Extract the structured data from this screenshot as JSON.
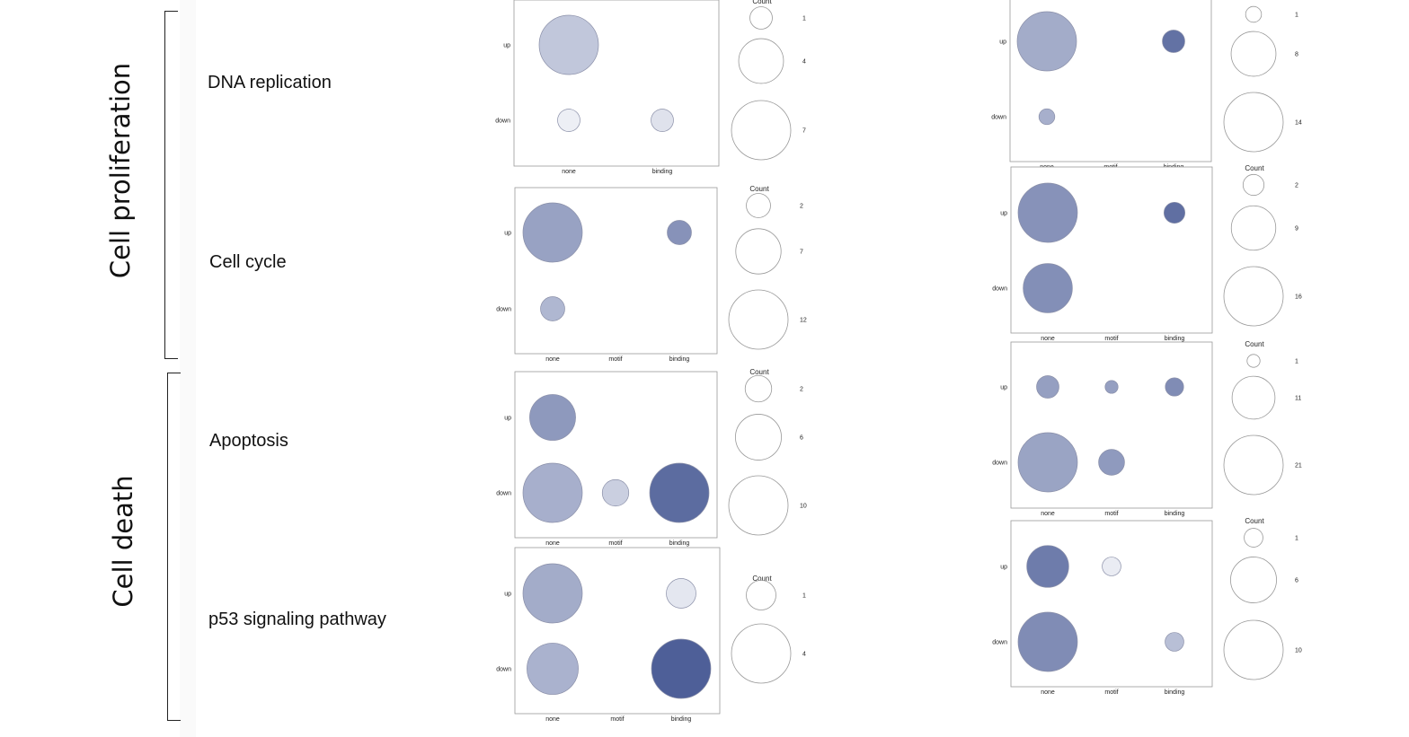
{
  "groups": [
    {
      "label": "Cell proliferation",
      "pathways": [
        "DNA replication",
        "Cell cycle"
      ]
    },
    {
      "label": "Cell death",
      "pathways": [
        "Apoptosis",
        "p53 signaling pathway"
      ]
    }
  ],
  "legend_title": "Count",
  "bubble_color": "#4e5f98",
  "chart_data": [
    {
      "type": "scatter",
      "pathway": "DNA replication",
      "column": "left",
      "x_categories": [
        "none",
        "binding"
      ],
      "y_categories": [
        "up",
        "down"
      ],
      "points": [
        {
          "x": "none",
          "y": "up",
          "count": 7,
          "intensity": 0.35
        },
        {
          "x": "none",
          "y": "down",
          "count": 1,
          "intensity": 0.1
        },
        {
          "x": "binding",
          "y": "down",
          "count": 1,
          "intensity": 0.18
        }
      ],
      "legend": [
        1,
        4,
        7
      ],
      "legend_max": 7
    },
    {
      "type": "scatter",
      "pathway": "Cell cycle",
      "column": "left",
      "x_categories": [
        "none",
        "motif",
        "binding"
      ],
      "y_categories": [
        "up",
        "down"
      ],
      "points": [
        {
          "x": "none",
          "y": "up",
          "count": 12,
          "intensity": 0.58
        },
        {
          "x": "binding",
          "y": "up",
          "count": 2,
          "intensity": 0.68
        },
        {
          "x": "none",
          "y": "down",
          "count": 2,
          "intensity": 0.45
        }
      ],
      "legend": [
        2,
        7,
        12
      ],
      "legend_max": 12
    },
    {
      "type": "scatter",
      "pathway": "Apoptosis",
      "column": "left",
      "x_categories": [
        "none",
        "motif",
        "binding"
      ],
      "y_categories": [
        "up",
        "down"
      ],
      "points": [
        {
          "x": "none",
          "y": "up",
          "count": 6,
          "intensity": 0.64
        },
        {
          "x": "none",
          "y": "down",
          "count": 10,
          "intensity": 0.5
        },
        {
          "x": "motif",
          "y": "down",
          "count": 2,
          "intensity": 0.3
        },
        {
          "x": "binding",
          "y": "down",
          "count": 10,
          "intensity": 0.92
        }
      ],
      "legend": [
        2,
        6,
        10
      ],
      "legend_max": 10
    },
    {
      "type": "scatter",
      "pathway": "p53 signaling pathway",
      "column": "left",
      "x_categories": [
        "none",
        "motif",
        "binding"
      ],
      "y_categories": [
        "up",
        "down"
      ],
      "points": [
        {
          "x": "none",
          "y": "up",
          "count": 4,
          "intensity": 0.52
        },
        {
          "x": "binding",
          "y": "up",
          "count": 1,
          "intensity": 0.15
        },
        {
          "x": "none",
          "y": "down",
          "count": 3,
          "intensity": 0.48
        },
        {
          "x": "binding",
          "y": "down",
          "count": 4,
          "intensity": 1.0
        }
      ],
      "legend": [
        1,
        4
      ],
      "legend_max": 4
    },
    {
      "type": "scatter",
      "pathway": "DNA replication",
      "column": "right",
      "x_categories": [
        "none",
        "motif",
        "binding"
      ],
      "y_categories": [
        "up",
        "down"
      ],
      "points": [
        {
          "x": "none",
          "y": "up",
          "count": 14,
          "intensity": 0.52
        },
        {
          "x": "binding",
          "y": "up",
          "count": 2,
          "intensity": 0.88
        },
        {
          "x": "none",
          "y": "down",
          "count": 1,
          "intensity": 0.5
        }
      ],
      "legend": [
        1,
        8,
        14
      ],
      "legend_max": 14
    },
    {
      "type": "scatter",
      "pathway": "Cell cycle",
      "column": "right",
      "x_categories": [
        "none",
        "motif",
        "binding"
      ],
      "y_categories": [
        "up",
        "down"
      ],
      "points": [
        {
          "x": "none",
          "y": "up",
          "count": 16,
          "intensity": 0.68
        },
        {
          "x": "binding",
          "y": "up",
          "count": 2,
          "intensity": 0.9
        },
        {
          "x": "none",
          "y": "down",
          "count": 11,
          "intensity": 0.7
        }
      ],
      "legend": [
        2,
        9,
        16
      ],
      "legend_max": 16
    },
    {
      "type": "scatter",
      "pathway": "Apoptosis",
      "column": "right",
      "x_categories": [
        "none",
        "motif",
        "binding"
      ],
      "y_categories": [
        "up",
        "down"
      ],
      "points": [
        {
          "x": "none",
          "y": "up",
          "count": 3,
          "intensity": 0.6
        },
        {
          "x": "motif",
          "y": "up",
          "count": 1,
          "intensity": 0.6
        },
        {
          "x": "binding",
          "y": "up",
          "count": 2,
          "intensity": 0.72
        },
        {
          "x": "none",
          "y": "down",
          "count": 21,
          "intensity": 0.57
        },
        {
          "x": "motif",
          "y": "down",
          "count": 4,
          "intensity": 0.63
        }
      ],
      "legend": [
        1,
        11,
        21
      ],
      "legend_max": 21
    },
    {
      "type": "scatter",
      "pathway": "p53 signaling pathway",
      "column": "right",
      "x_categories": [
        "none",
        "motif",
        "binding"
      ],
      "y_categories": [
        "up",
        "down"
      ],
      "points": [
        {
          "x": "none",
          "y": "up",
          "count": 5,
          "intensity": 0.82
        },
        {
          "x": "motif",
          "y": "up",
          "count": 1,
          "intensity": 0.12
        },
        {
          "x": "none",
          "y": "down",
          "count": 10,
          "intensity": 0.72
        },
        {
          "x": "binding",
          "y": "down",
          "count": 1,
          "intensity": 0.4
        }
      ],
      "legend": [
        1,
        6,
        10
      ],
      "legend_max": 10
    }
  ]
}
